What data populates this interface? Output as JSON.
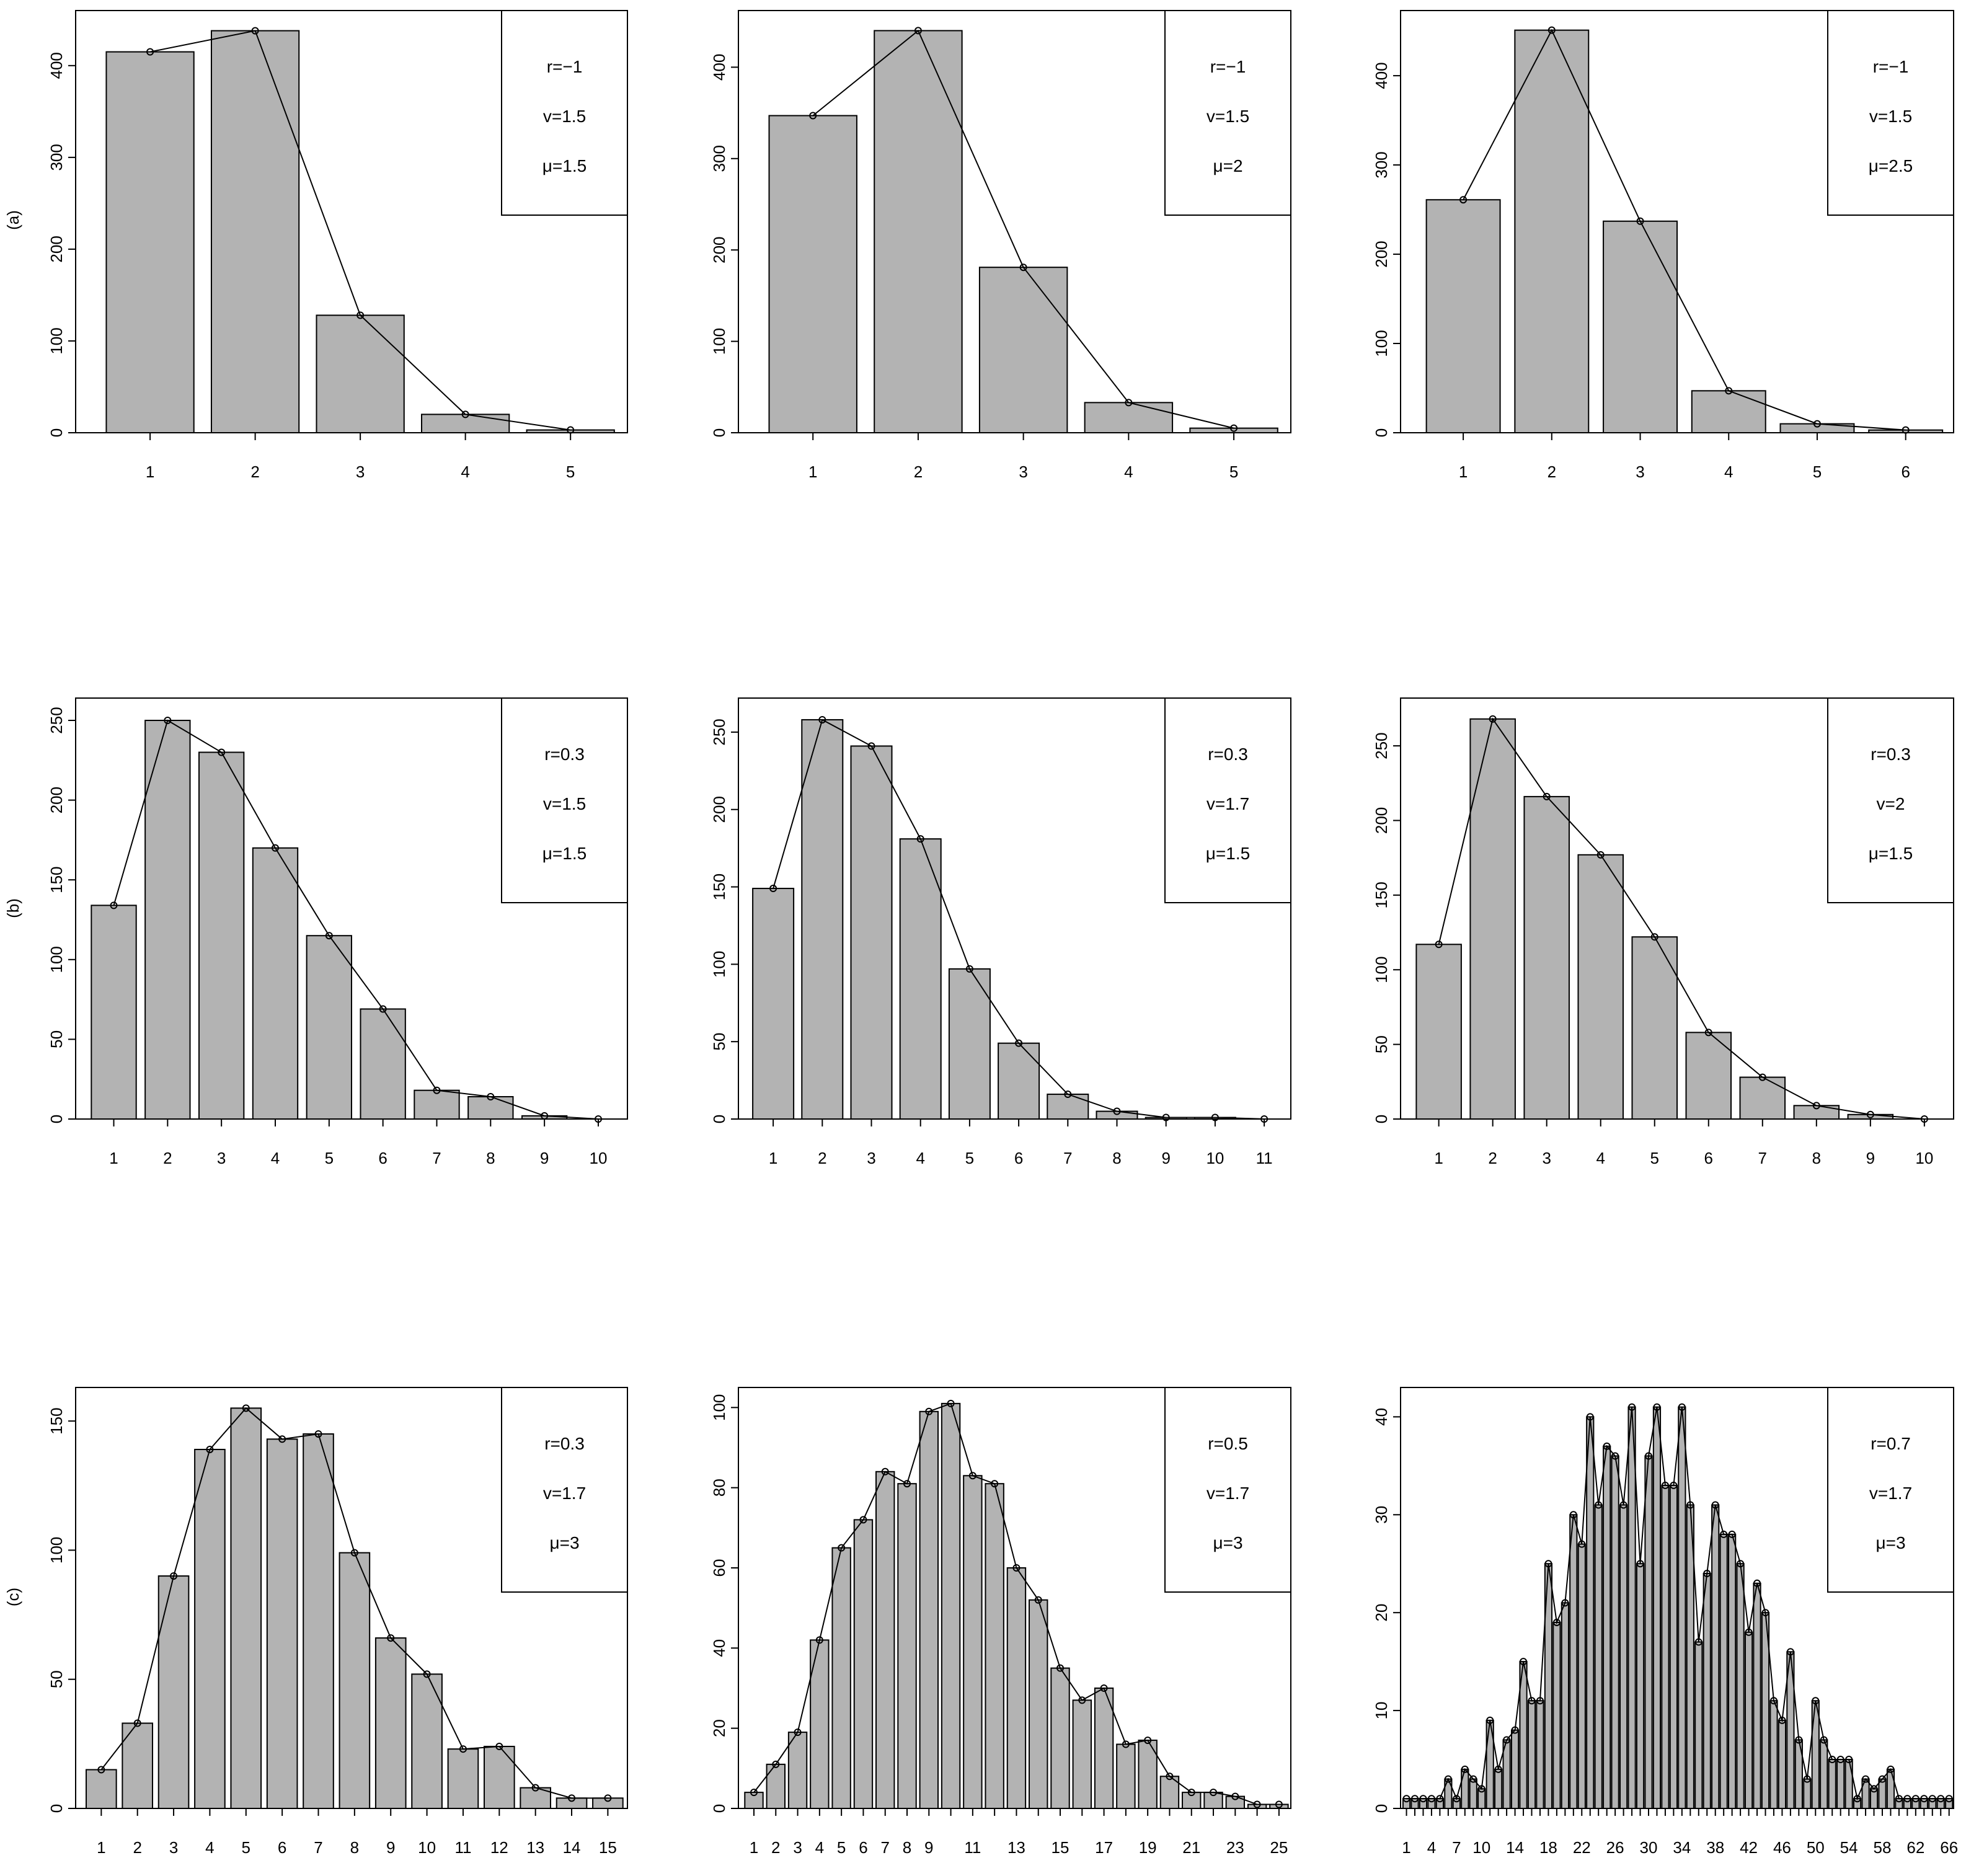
{
  "figure_title": "",
  "row_labels": [
    "(a)",
    "(b)",
    "(c)"
  ],
  "colors": {
    "bar_fill": "#b3b3b3",
    "stroke": "#000000",
    "background": "#ffffff"
  },
  "chart_data": [
    {
      "type": "bar",
      "row_label": "(a)",
      "categories": [
        "1",
        "2",
        "3",
        "4",
        "5"
      ],
      "values": [
        415,
        438,
        128,
        20,
        3
      ],
      "line_values": [
        415,
        438,
        128,
        20,
        3
      ],
      "ylim": [
        0,
        460
      ],
      "yticks": [
        0,
        100,
        200,
        300,
        400
      ],
      "xticks": [
        "1",
        "2",
        "3",
        "4",
        "5"
      ],
      "legend": [
        "r=−1",
        "v=1.5",
        "μ=1.5"
      ],
      "legend_position": "top-right",
      "title": "",
      "xlabel": "",
      "ylabel": ""
    },
    {
      "type": "bar",
      "row_label": "",
      "categories": [
        "1",
        "2",
        "3",
        "4",
        "5"
      ],
      "values": [
        347,
        440,
        181,
        33,
        5
      ],
      "line_values": [
        347,
        440,
        181,
        33,
        5
      ],
      "ylim": [
        0,
        462
      ],
      "yticks": [
        0,
        100,
        200,
        300,
        400
      ],
      "xticks": [
        "1",
        "2",
        "3",
        "4",
        "5"
      ],
      "legend": [
        "r=−1",
        "v=1.5",
        "μ=2"
      ],
      "legend_position": "top-right",
      "title": "",
      "xlabel": "",
      "ylabel": ""
    },
    {
      "type": "bar",
      "row_label": "",
      "categories": [
        "1",
        "2",
        "3",
        "4",
        "5",
        "6"
      ],
      "values": [
        261,
        451,
        237,
        47,
        10,
        3
      ],
      "line_values": [
        261,
        451,
        237,
        47,
        10,
        3
      ],
      "ylim": [
        0,
        473
      ],
      "yticks": [
        0,
        100,
        200,
        300,
        400
      ],
      "xticks": [
        "1",
        "2",
        "3",
        "4",
        "5",
        "6"
      ],
      "legend": [
        "r=−1",
        "v=1.5",
        "μ=2.5"
      ],
      "legend_position": "top-right",
      "title": "",
      "xlabel": "",
      "ylabel": ""
    },
    {
      "type": "bar",
      "row_label": "(b)",
      "categories": [
        "1",
        "2",
        "3",
        "4",
        "5",
        "6",
        "7",
        "8",
        "9",
        "10"
      ],
      "values": [
        134,
        250,
        230,
        170,
        115,
        69,
        18,
        14,
        2,
        0
      ],
      "line_values": [
        134,
        250,
        230,
        170,
        115,
        69,
        18,
        14,
        2,
        0
      ],
      "ylim": [
        0,
        264
      ],
      "yticks": [
        0,
        50,
        100,
        150,
        200,
        250
      ],
      "xticks": [
        "1",
        "2",
        "3",
        "4",
        "5",
        "6",
        "7",
        "8",
        "9",
        "10"
      ],
      "legend": [
        "r=0.3",
        "v=1.5",
        "μ=1.5"
      ],
      "legend_position": "top-right",
      "title": "",
      "xlabel": "",
      "ylabel": ""
    },
    {
      "type": "bar",
      "row_label": "",
      "categories": [
        "1",
        "2",
        "3",
        "4",
        "5",
        "6",
        "7",
        "8",
        "9",
        "10",
        "11"
      ],
      "values": [
        149,
        258,
        241,
        181,
        97,
        49,
        16,
        5,
        1,
        1,
        0
      ],
      "line_values": [
        149,
        258,
        241,
        181,
        97,
        49,
        16,
        5,
        1,
        1,
        0
      ],
      "ylim": [
        0,
        272
      ],
      "yticks": [
        0,
        50,
        100,
        150,
        200,
        250
      ],
      "xticks": [
        "1",
        "2",
        "3",
        "4",
        "5",
        "6",
        "7",
        "8",
        "9",
        "10",
        "11"
      ],
      "legend": [
        "r=0.3",
        "v=1.7",
        "μ=1.5"
      ],
      "legend_position": "top-right",
      "title": "",
      "xlabel": "",
      "ylabel": ""
    },
    {
      "type": "bar",
      "row_label": "",
      "categories": [
        "1",
        "2",
        "3",
        "4",
        "5",
        "6",
        "7",
        "8",
        "9",
        "10"
      ],
      "values": [
        117,
        268,
        216,
        177,
        122,
        58,
        28,
        9,
        3,
        0
      ],
      "line_values": [
        117,
        268,
        216,
        177,
        122,
        58,
        28,
        9,
        3,
        0
      ],
      "ylim": [
        0,
        282
      ],
      "yticks": [
        0,
        50,
        100,
        150,
        200,
        250
      ],
      "xticks": [
        "1",
        "2",
        "3",
        "4",
        "5",
        "6",
        "7",
        "8",
        "9",
        "10"
      ],
      "legend": [
        "r=0.3",
        "v=2",
        "μ=1.5"
      ],
      "legend_position": "top-right",
      "title": "",
      "xlabel": "",
      "ylabel": ""
    },
    {
      "type": "bar",
      "row_label": "(c)",
      "categories": [
        "1",
        "2",
        "3",
        "4",
        "5",
        "6",
        "7",
        "8",
        "9",
        "10",
        "11",
        "12",
        "13",
        "14",
        "15"
      ],
      "values": [
        15,
        33,
        90,
        139,
        155,
        143,
        145,
        99,
        66,
        52,
        23,
        24,
        8,
        4,
        4
      ],
      "line_values": [
        15,
        33,
        90,
        139,
        155,
        143,
        145,
        99,
        66,
        52,
        23,
        24,
        8,
        4,
        4
      ],
      "ylim": [
        0,
        163
      ],
      "yticks": [
        0,
        50,
        100,
        150
      ],
      "xticks": [
        "1",
        "2",
        "3",
        "4",
        "5",
        "6",
        "7",
        "8",
        "9",
        "10",
        "11",
        "12",
        "13",
        "14",
        "15"
      ],
      "legend": [
        "r=0.3",
        "v=1.7",
        "μ=3"
      ],
      "legend_position": "top-right",
      "title": "",
      "xlabel": "",
      "ylabel": ""
    },
    {
      "type": "bar",
      "row_label": "",
      "categories": [
        "1",
        "2",
        "3",
        "4",
        "5",
        "6",
        "7",
        "8",
        "9",
        "10",
        "11",
        "12",
        "13",
        "14",
        "15",
        "16",
        "17",
        "18",
        "19",
        "20",
        "21",
        "22",
        "23",
        "24",
        "25"
      ],
      "values": [
        4,
        11,
        19,
        42,
        65,
        72,
        84,
        81,
        99,
        101,
        83,
        81,
        60,
        52,
        35,
        27,
        30,
        16,
        17,
        8,
        4,
        4,
        3,
        1,
        1
      ],
      "line_values": [
        4,
        11,
        19,
        42,
        65,
        72,
        84,
        81,
        99,
        101,
        83,
        81,
        60,
        52,
        35,
        27,
        30,
        16,
        17,
        8,
        4,
        4,
        3,
        1,
        1
      ],
      "ylim": [
        0,
        105
      ],
      "yticks": [
        0,
        20,
        40,
        60,
        80,
        100
      ],
      "xticks": [
        "1",
        "2",
        "3",
        "4",
        "5",
        "6",
        "7",
        "8",
        "9",
        "11",
        "13",
        "15",
        "17",
        "19",
        "21",
        "23",
        "25"
      ],
      "legend": [
        "r=0.5",
        "v=1.7",
        "μ=3"
      ],
      "legend_position": "top-right",
      "title": "",
      "xlabel": "",
      "ylabel": ""
    },
    {
      "type": "bar",
      "row_label": "",
      "categories": [
        "1",
        "2",
        "3",
        "4",
        "5",
        "6",
        "7",
        "8",
        "9",
        "10",
        "11",
        "12",
        "13",
        "14",
        "15",
        "16",
        "17",
        "18",
        "19",
        "20",
        "21",
        "22",
        "23",
        "24",
        "25",
        "26",
        "27",
        "28",
        "29",
        "30",
        "31",
        "32",
        "33",
        "34",
        "35",
        "36",
        "37",
        "38",
        "39",
        "40",
        "41",
        "42",
        "43",
        "44",
        "45",
        "46",
        "47",
        "48",
        "49",
        "50",
        "51",
        "52",
        "53",
        "54",
        "55",
        "56",
        "57",
        "58",
        "59",
        "60",
        "61",
        "62",
        "63",
        "64",
        "65",
        "66"
      ],
      "values": [
        1,
        1,
        1,
        1,
        1,
        3,
        1,
        4,
        3,
        2,
        9,
        4,
        7,
        8,
        15,
        11,
        11,
        25,
        19,
        21,
        30,
        27,
        40,
        31,
        37,
        36,
        31,
        41,
        25,
        36,
        41,
        33,
        33,
        41,
        31,
        17,
        24,
        31,
        28,
        28,
        25,
        18,
        23,
        20,
        11,
        9,
        16,
        7,
        3,
        11,
        7,
        5,
        5,
        5,
        1,
        3,
        2,
        3,
        4,
        1,
        1,
        1,
        1,
        1,
        1,
        1
      ],
      "line_values": [
        1,
        1,
        1,
        1,
        1,
        3,
        1,
        4,
        3,
        2,
        9,
        4,
        7,
        8,
        15,
        11,
        11,
        25,
        19,
        21,
        30,
        27,
        40,
        31,
        37,
        36,
        31,
        41,
        25,
        36,
        41,
        33,
        33,
        41,
        31,
        17,
        24,
        31,
        28,
        28,
        25,
        18,
        23,
        20,
        11,
        9,
        16,
        7,
        3,
        11,
        7,
        5,
        5,
        5,
        1,
        3,
        2,
        3,
        4,
        1,
        1,
        1,
        1,
        1,
        1,
        1
      ],
      "ylim": [
        0,
        43
      ],
      "yticks": [
        0,
        10,
        20,
        30,
        40
      ],
      "xticks": [
        "1",
        "4",
        "7",
        "10",
        "14",
        "18",
        "22",
        "26",
        "30",
        "34",
        "38",
        "42",
        "46",
        "50",
        "54",
        "58",
        "62",
        "66"
      ],
      "legend": [
        "r=0.7",
        "v=1.7",
        "μ=3"
      ],
      "legend_position": "top-right",
      "title": "",
      "xlabel": "",
      "ylabel": ""
    }
  ]
}
